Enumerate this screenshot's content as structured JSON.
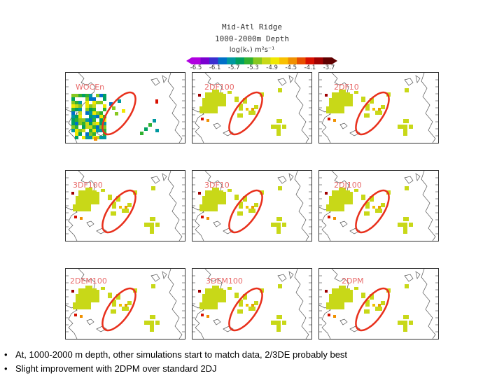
{
  "figure": {
    "title_line1": "Mid-Atl Ridge",
    "title_line2": "1000-2000m Depth",
    "title_line3": "log(kᵥ) m²s⁻¹"
  },
  "colorbar": {
    "tick_labels": [
      "-6.5",
      "-6.1",
      "-5.7",
      "-5.3",
      "-4.9",
      "-4.5",
      "-4.1",
      "-3.7"
    ],
    "colors": [
      "#b000e0",
      "#7a00d0",
      "#3a2fd0",
      "#0070c8",
      "#0098a0",
      "#00a060",
      "#30b030",
      "#88c820",
      "#c8d818",
      "#f0e800",
      "#f8c000",
      "#f09000",
      "#e85000",
      "#d81000",
      "#a00000",
      "#600000"
    ]
  },
  "panels": [
    {
      "label": "WOCEn",
      "style": "data"
    },
    {
      "label": "2DF100",
      "style": "model"
    },
    {
      "label": "2DF10",
      "style": "model"
    },
    {
      "label": "3DF100",
      "style": "model"
    },
    {
      "label": "3DF10",
      "style": "model"
    },
    {
      "label": "2DJ100",
      "style": "model"
    },
    {
      "label": "2DEM100",
      "style": "model"
    },
    {
      "label": "3DEM100",
      "style": "model"
    },
    {
      "label": "2DPM",
      "style": "model"
    }
  ],
  "bullets": [
    "At, 1000-2000 m depth, other simulations start to match data, 2/3DE  probably best",
    "Slight improvement with 2DPM over standard 2DJ"
  ]
}
